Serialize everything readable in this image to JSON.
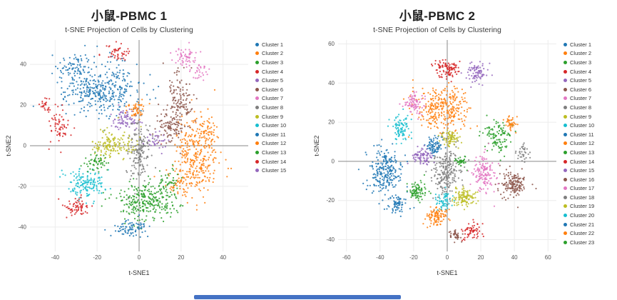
{
  "misc": {
    "bottom_bar_color": "#4472c4"
  },
  "chart_data": [
    {
      "type": "scatter",
      "title": "小鼠-PBMC 1",
      "subtitle": "t-SNE Projection of Cells by Clustering",
      "xlabel": "t-SNE1",
      "ylabel": "t-SNE2",
      "xlim": [
        -52,
        52
      ],
      "ylim": [
        -52,
        52
      ],
      "xticks": [
        -40,
        -20,
        0,
        20,
        40
      ],
      "yticks": [
        -40,
        -20,
        0,
        20,
        40
      ],
      "grid": true,
      "legend_position": "right",
      "seed": 7,
      "clusters": [
        {
          "name": "Cluster 1",
          "color": "#1f77b4",
          "blobs": [
            [
              -18,
              28,
              9,
              6.5,
              380
            ],
            [
              -31,
              39,
              4,
              3,
              60
            ]
          ]
        },
        {
          "name": "Cluster 2",
          "color": "#ff7f0e",
          "blobs": [
            [
              27,
              -3,
              5,
              9,
              300
            ],
            [
              20,
              -19,
              4,
              3,
              60
            ],
            [
              33,
              8,
              3,
              3,
              40
            ]
          ]
        },
        {
          "name": "Cluster 3",
          "color": "#2ca02c",
          "blobs": [
            [
              4,
              -27,
              7,
              4.5,
              280
            ],
            [
              13,
              -18,
              3,
              3,
              40
            ]
          ]
        },
        {
          "name": "Cluster 4",
          "color": "#d62728",
          "blobs": [
            [
              -38,
              10,
              2.5,
              4.5,
              60
            ],
            [
              -44,
              19,
              2,
              2,
              25
            ],
            [
              -10,
              46,
              3,
              2,
              45
            ]
          ]
        },
        {
          "name": "Cluster 5",
          "color": "#9467bd",
          "blobs": [
            [
              -6,
              13,
              3.5,
              2.5,
              80
            ]
          ]
        },
        {
          "name": "Cluster 6",
          "color": "#8c564b",
          "blobs": [
            [
              19,
              22,
              3.5,
              7,
              150
            ],
            [
              14,
              9,
              3,
              4,
              70
            ]
          ]
        },
        {
          "name": "Cluster 7",
          "color": "#e377c2",
          "blobs": [
            [
              22,
              43,
              3,
              2.5,
              60
            ],
            [
              30,
              36,
              2,
              2,
              25
            ]
          ]
        },
        {
          "name": "Cluster 8",
          "color": "#7f7f7f",
          "blobs": [
            [
              0,
              -2,
              3,
              7.5,
              170
            ]
          ]
        },
        {
          "name": "Cluster 9",
          "color": "#bcbd22",
          "blobs": [
            [
              -12,
              0,
              5,
              3.5,
              150
            ]
          ]
        },
        {
          "name": "Cluster 10",
          "color": "#17becf",
          "blobs": [
            [
              -25,
              -19,
              5,
              3.5,
              150
            ]
          ]
        },
        {
          "name": "Cluster 11",
          "color": "#1f77b4",
          "blobs": [
            [
              -4,
              -40,
              4,
              2.5,
              80
            ]
          ]
        },
        {
          "name": "Cluster 12",
          "color": "#ff7f0e",
          "blobs": [
            [
              -2,
              18,
              2.5,
              2,
              50
            ]
          ]
        },
        {
          "name": "Cluster 13",
          "color": "#2ca02c",
          "blobs": [
            [
              -20,
              -8,
              3,
              2.5,
              55
            ]
          ]
        },
        {
          "name": "Cluster 14",
          "color": "#d62728",
          "blobs": [
            [
              -30,
              -30,
              3,
              2.5,
              65
            ]
          ]
        },
        {
          "name": "Cluster 15",
          "color": "#9467bd",
          "blobs": [
            [
              8,
              3,
              2.5,
              2,
              40
            ]
          ]
        }
      ]
    },
    {
      "type": "scatter",
      "title": "小鼠-PBMC 2",
      "subtitle": "t-SNE Projection of Cells by Clustering",
      "xlabel": "t-SNE1",
      "ylabel": "t-SNE2",
      "xlim": [
        -65,
        65
      ],
      "ylim": [
        -46,
        62
      ],
      "xticks": [
        -60,
        -40,
        -20,
        0,
        20,
        40,
        60
      ],
      "yticks": [
        -40,
        -20,
        0,
        20,
        40,
        60
      ],
      "grid": true,
      "legend_position": "right",
      "seed": 13,
      "clusters": [
        {
          "name": "Cluster 1",
          "color": "#1f77b4",
          "blobs": [
            [
              -38,
              -5,
              5.5,
              6,
              240
            ]
          ]
        },
        {
          "name": "Cluster 2",
          "color": "#ff7f0e",
          "blobs": [
            [
              -3,
              27,
              7.5,
              5.5,
              300
            ]
          ]
        },
        {
          "name": "Cluster 3",
          "color": "#2ca02c",
          "blobs": [
            [
              31,
              12,
              4,
              4,
              110
            ]
          ]
        },
        {
          "name": "Cluster 4",
          "color": "#d62728",
          "blobs": [
            [
              0,
              47,
              4,
              2.5,
              100
            ]
          ]
        },
        {
          "name": "Cluster 5",
          "color": "#9467bd",
          "blobs": [
            [
              18,
              46,
              3,
              2.5,
              80
            ]
          ]
        },
        {
          "name": "Cluster 6",
          "color": "#8c564b",
          "blobs": [
            [
              40,
              -12,
              4.5,
              3.5,
              150
            ]
          ]
        },
        {
          "name": "Cluster 7",
          "color": "#e377c2",
          "blobs": [
            [
              22,
              -6,
              3.5,
              4.5,
              140
            ]
          ]
        },
        {
          "name": "Cluster 8",
          "color": "#7f7f7f",
          "blobs": [
            [
              0,
              -5,
              4.5,
              6.5,
              220
            ]
          ]
        },
        {
          "name": "Cluster 9",
          "color": "#bcbd22",
          "blobs": [
            [
              10,
              -18,
              3.5,
              2.5,
              110
            ]
          ]
        },
        {
          "name": "Cluster 10",
          "color": "#17becf",
          "blobs": [
            [
              -28,
              17,
              2.5,
              3.5,
              90
            ]
          ]
        },
        {
          "name": "Cluster 11",
          "color": "#1f77b4",
          "blobs": [
            [
              -8,
              8,
              3,
              2.5,
              80
            ]
          ]
        },
        {
          "name": "Cluster 12",
          "color": "#ff7f0e",
          "blobs": [
            [
              -6,
              -28,
              3.5,
              2.5,
              100
            ]
          ]
        },
        {
          "name": "Cluster 13",
          "color": "#2ca02c",
          "blobs": [
            [
              -18,
              -15,
              3,
              2.5,
              85
            ]
          ]
        },
        {
          "name": "Cluster 14",
          "color": "#d62728",
          "blobs": [
            [
              14,
              -36,
              3,
              2,
              60
            ]
          ]
        },
        {
          "name": "Cluster 15",
          "color": "#9467bd",
          "blobs": [
            [
              -14,
              2,
              3,
              2.5,
              85
            ]
          ]
        },
        {
          "name": "Cluster 16",
          "color": "#8c564b",
          "blobs": [
            [
              5,
              -38,
              2,
              1.5,
              40
            ]
          ]
        },
        {
          "name": "Cluster 17",
          "color": "#e377c2",
          "blobs": [
            [
              -20,
              30,
              3,
              2.5,
              80
            ]
          ]
        },
        {
          "name": "Cluster 18",
          "color": "#7f7f7f",
          "blobs": [
            [
              45,
              4,
              2,
              2,
              35
            ]
          ]
        },
        {
          "name": "Cluster 19",
          "color": "#bcbd22",
          "blobs": [
            [
              2,
              12,
              3,
              2.5,
              70
            ]
          ]
        },
        {
          "name": "Cluster 20",
          "color": "#17becf",
          "blobs": [
            [
              -2,
              -20,
              2.5,
              2,
              60
            ]
          ]
        },
        {
          "name": "Cluster 21",
          "color": "#1f77b4",
          "blobs": [
            [
              -30,
              -22,
              3,
              2.5,
              70
            ]
          ]
        },
        {
          "name": "Cluster 22",
          "color": "#ff7f0e",
          "blobs": [
            [
              38,
              20,
              2,
              2,
              40
            ]
          ]
        },
        {
          "name": "Cluster 23",
          "color": "#2ca02c",
          "blobs": [
            [
              8,
              0,
              2,
              1.5,
              35
            ]
          ]
        }
      ]
    }
  ]
}
